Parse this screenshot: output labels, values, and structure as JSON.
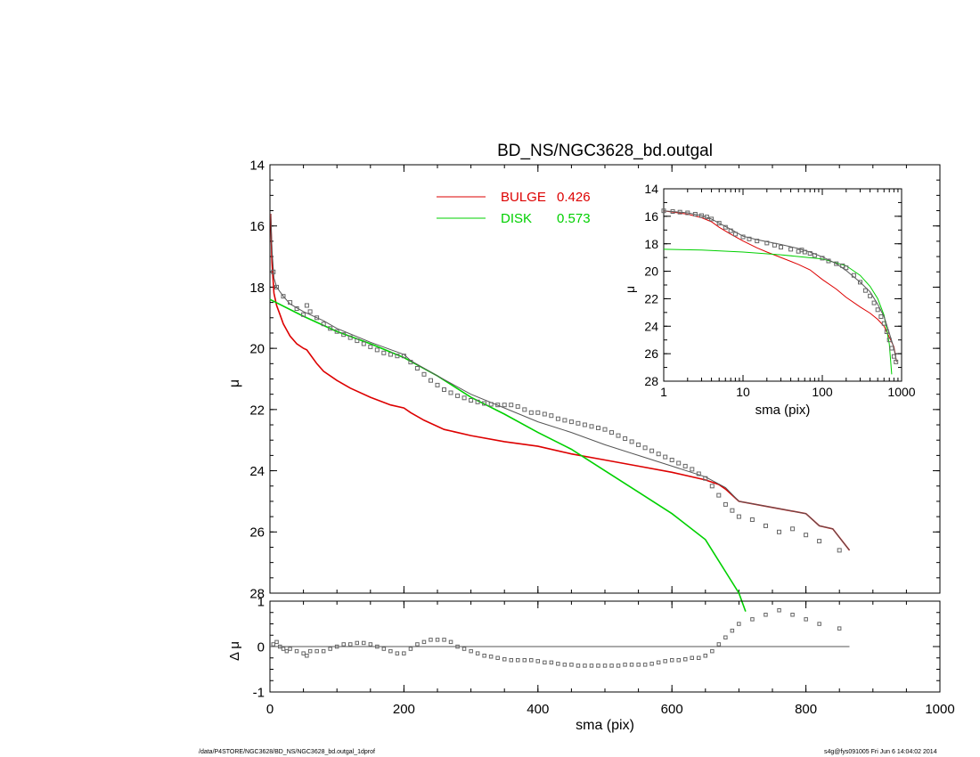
{
  "footer": {
    "left": "/data/P4STORE/NGC3628/BD_NS/NGC3628_bd.outgal_1dprof",
    "right": "s4g@fys091005  Fri Jun  6 14:04:02 2014"
  },
  "colors": {
    "bulge": "#dd0000",
    "disk": "#00d000",
    "total": "#555555",
    "data": "#666666"
  },
  "chart_data": [
    {
      "panel": "main",
      "type": "line",
      "title": "BD_NS/NGC3628_bd.outgal",
      "xlabel": "",
      "ylabel": "μ",
      "xlim": [
        0,
        1000
      ],
      "ylim": [
        28,
        14
      ],
      "xticks": [
        0,
        200,
        400,
        600,
        800,
        1000
      ],
      "yticks": [
        14,
        16,
        18,
        20,
        22,
        24,
        26,
        28
      ],
      "legend": [
        {
          "name": "BULGE",
          "value": "0.426"
        },
        {
          "name": "DISK",
          "value": "0.573"
        }
      ],
      "series": [
        {
          "name": "BULGE",
          "x": [
            1,
            3,
            6,
            10,
            15,
            20,
            30,
            40,
            50,
            55,
            60,
            70,
            80,
            100,
            120,
            150,
            180,
            200,
            210,
            230,
            260,
            300,
            350,
            400,
            450,
            500,
            550,
            600,
            650,
            670,
            680,
            700,
            750,
            800,
            820,
            840,
            865
          ],
          "y": [
            15.6,
            17.2,
            18.2,
            18.6,
            18.9,
            19.2,
            19.6,
            19.85,
            20.0,
            20.05,
            20.2,
            20.5,
            20.75,
            21.05,
            21.3,
            21.6,
            21.85,
            21.95,
            22.1,
            22.35,
            22.65,
            22.85,
            23.05,
            23.2,
            23.45,
            23.65,
            23.85,
            24.05,
            24.3,
            24.45,
            24.6,
            25.0,
            25.2,
            25.4,
            25.8,
            25.9,
            26.6
          ]
        },
        {
          "name": "DISK",
          "x": [
            0,
            50,
            100,
            150,
            200,
            250,
            300,
            350,
            400,
            450,
            500,
            550,
            600,
            650,
            680,
            700,
            710
          ],
          "y": [
            18.4,
            18.95,
            19.45,
            19.85,
            20.3,
            20.9,
            21.6,
            22.15,
            22.75,
            23.3,
            24.0,
            24.7,
            25.4,
            26.25,
            27.3,
            28.0,
            28.6
          ]
        },
        {
          "name": "total",
          "x": [
            1,
            3,
            6,
            10,
            20,
            30,
            50,
            60,
            80,
            100,
            150,
            200,
            210,
            250,
            300,
            350,
            400,
            450,
            500,
            550,
            600,
            650,
            680,
            700,
            750,
            800,
            820,
            840,
            865
          ],
          "y": [
            15.6,
            16.8,
            17.7,
            18.0,
            18.3,
            18.55,
            18.8,
            18.9,
            19.1,
            19.35,
            19.8,
            20.2,
            20.4,
            20.9,
            21.5,
            21.95,
            22.4,
            22.75,
            23.15,
            23.5,
            23.85,
            24.2,
            24.55,
            25.0,
            25.2,
            25.4,
            25.8,
            25.9,
            26.6
          ]
        }
      ],
      "data_points": {
        "x": [
          5,
          10,
          20,
          30,
          40,
          50,
          55,
          60,
          70,
          80,
          90,
          100,
          110,
          120,
          130,
          140,
          150,
          160,
          170,
          180,
          190,
          200,
          210,
          220,
          230,
          240,
          250,
          260,
          270,
          280,
          290,
          300,
          310,
          320,
          330,
          340,
          350,
          360,
          370,
          380,
          390,
          400,
          410,
          420,
          430,
          440,
          450,
          460,
          470,
          480,
          490,
          500,
          510,
          520,
          530,
          540,
          550,
          560,
          570,
          580,
          590,
          600,
          610,
          620,
          630,
          640,
          650,
          660,
          670,
          680,
          690,
          700,
          720,
          740,
          760,
          780,
          800,
          820,
          850
        ],
        "y": [
          17.5,
          18.0,
          18.3,
          18.5,
          18.7,
          18.9,
          18.6,
          18.8,
          19.0,
          19.2,
          19.35,
          19.45,
          19.55,
          19.65,
          19.75,
          19.85,
          19.95,
          20.05,
          20.15,
          20.2,
          20.25,
          20.25,
          20.45,
          20.65,
          20.85,
          21.05,
          21.2,
          21.35,
          21.45,
          21.55,
          21.62,
          21.7,
          21.75,
          21.8,
          21.83,
          21.85,
          21.85,
          21.85,
          21.9,
          22.0,
          22.1,
          22.1,
          22.15,
          22.2,
          22.3,
          22.35,
          22.4,
          22.45,
          22.5,
          22.55,
          22.6,
          22.65,
          22.75,
          22.85,
          22.95,
          23.05,
          23.15,
          23.25,
          23.35,
          23.45,
          23.55,
          23.65,
          23.75,
          23.85,
          23.95,
          24.1,
          24.25,
          24.5,
          24.8,
          25.1,
          25.3,
          25.5,
          25.6,
          25.8,
          26.0,
          25.9,
          26.1,
          26.3,
          26.6
        ]
      }
    },
    {
      "panel": "inset",
      "type": "line",
      "title": "",
      "xlabel": "sma (pix)",
      "ylabel": "μ",
      "xscale": "log",
      "xlim": [
        1,
        1000
      ],
      "ylim": [
        28,
        14
      ],
      "xticks": [
        1,
        10,
        100,
        1000
      ],
      "yticks": [
        14,
        16,
        18,
        20,
        22,
        24,
        26,
        28
      ],
      "series": [
        {
          "name": "BULGE",
          "x": [
            1,
            2,
            3,
            4,
            5,
            7,
            10,
            15,
            20,
            30,
            50,
            70,
            100,
            150,
            200,
            300,
            400,
            500,
            600,
            700,
            800,
            865
          ],
          "y": [
            15.6,
            15.85,
            16.1,
            16.4,
            16.8,
            17.3,
            17.8,
            18.3,
            18.6,
            19.0,
            19.5,
            19.9,
            20.6,
            21.3,
            21.9,
            22.6,
            23.05,
            23.5,
            24.0,
            24.8,
            25.5,
            26.6
          ]
        },
        {
          "name": "DISK",
          "x": [
            1,
            3,
            10,
            30,
            100,
            200,
            300,
            400,
            500,
            600,
            700,
            750
          ],
          "y": [
            18.4,
            18.45,
            18.6,
            18.8,
            19.1,
            19.6,
            20.3,
            21.1,
            22.0,
            23.2,
            25.3,
            27.5
          ]
        },
        {
          "name": "total",
          "x": [
            1,
            2,
            3,
            4,
            5,
            7,
            10,
            15,
            20,
            30,
            50,
            70,
            100,
            150,
            200,
            300,
            400,
            500,
            600,
            700,
            800,
            865
          ],
          "y": [
            15.6,
            15.75,
            15.95,
            16.2,
            16.5,
            16.95,
            17.45,
            17.7,
            17.85,
            18.05,
            18.35,
            18.6,
            18.95,
            19.45,
            19.95,
            20.8,
            21.5,
            22.4,
            23.3,
            24.5,
            25.6,
            26.6
          ]
        }
      ],
      "data_points": {
        "x": [
          1,
          1.3,
          1.6,
          2,
          2.5,
          3,
          3.5,
          4,
          5,
          6,
          7,
          8,
          10,
          12,
          15,
          20,
          25,
          30,
          40,
          50,
          55,
          60,
          70,
          80,
          100,
          120,
          150,
          180,
          200,
          250,
          300,
          350,
          400,
          450,
          500,
          550,
          600,
          650,
          700,
          750,
          800,
          850
        ],
        "y": [
          15.6,
          15.65,
          15.7,
          15.75,
          15.85,
          15.95,
          16.05,
          16.2,
          16.5,
          16.8,
          17.05,
          17.3,
          17.5,
          17.65,
          17.8,
          17.95,
          18.1,
          18.25,
          18.4,
          18.55,
          18.45,
          18.6,
          18.7,
          18.85,
          19.05,
          19.25,
          19.45,
          19.6,
          19.75,
          20.3,
          20.8,
          21.4,
          21.8,
          22.3,
          22.8,
          23.3,
          23.8,
          24.4,
          25.0,
          25.6,
          26.2,
          26.6
        ]
      }
    },
    {
      "panel": "residual",
      "type": "scatter",
      "title": "",
      "xlabel": "sma (pix)",
      "ylabel": "Δ μ",
      "xlim": [
        0,
        1000
      ],
      "ylim": [
        -1,
        1
      ],
      "xticks": [
        0,
        200,
        400,
        600,
        800,
        1000
      ],
      "yticks": [
        1,
        0,
        -1
      ],
      "reference_line": {
        "y": 0,
        "x_end": 865
      },
      "points": {
        "x": [
          5,
          10,
          15,
          20,
          25,
          30,
          40,
          50,
          55,
          60,
          70,
          80,
          90,
          100,
          110,
          120,
          130,
          140,
          150,
          160,
          170,
          180,
          190,
          200,
          210,
          220,
          230,
          240,
          250,
          260,
          270,
          280,
          290,
          300,
          310,
          320,
          330,
          340,
          350,
          360,
          370,
          380,
          390,
          400,
          410,
          420,
          430,
          440,
          450,
          460,
          470,
          480,
          490,
          500,
          510,
          520,
          530,
          540,
          550,
          560,
          570,
          580,
          590,
          600,
          610,
          620,
          630,
          640,
          650,
          660,
          670,
          680,
          690,
          700,
          720,
          740,
          760,
          780,
          800,
          820,
          850
        ],
        "y": [
          0.05,
          0.1,
          0.0,
          -0.05,
          -0.1,
          -0.05,
          -0.1,
          -0.15,
          -0.2,
          -0.1,
          -0.1,
          -0.1,
          -0.05,
          0.0,
          0.05,
          0.05,
          0.08,
          0.08,
          0.05,
          0.0,
          -0.05,
          -0.1,
          -0.15,
          -0.15,
          -0.05,
          0.05,
          0.1,
          0.15,
          0.15,
          0.15,
          0.1,
          0.0,
          -0.05,
          -0.1,
          -0.15,
          -0.2,
          -0.22,
          -0.25,
          -0.28,
          -0.3,
          -0.3,
          -0.3,
          -0.3,
          -0.32,
          -0.35,
          -0.35,
          -0.38,
          -0.4,
          -0.4,
          -0.42,
          -0.42,
          -0.42,
          -0.42,
          -0.42,
          -0.42,
          -0.42,
          -0.4,
          -0.4,
          -0.4,
          -0.4,
          -0.38,
          -0.35,
          -0.32,
          -0.3,
          -0.3,
          -0.28,
          -0.25,
          -0.25,
          -0.2,
          -0.1,
          0.05,
          0.2,
          0.35,
          0.5,
          0.6,
          0.7,
          0.8,
          0.7,
          0.6,
          0.5,
          0.4
        ]
      }
    }
  ]
}
